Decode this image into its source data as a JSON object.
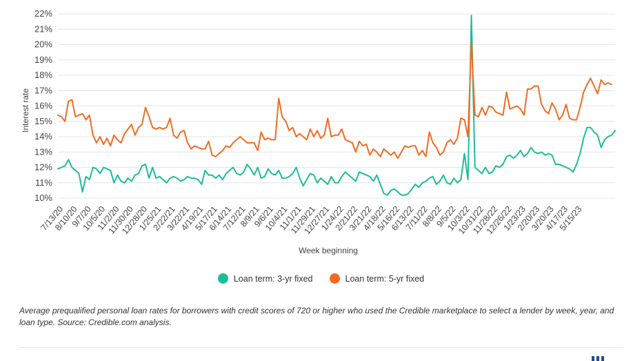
{
  "chart_data": {
    "type": "line",
    "ylabel": "Interest rate",
    "xlabel": "Week beginning",
    "ylim": [
      10,
      22
    ],
    "yticks": [
      "10%",
      "11%",
      "12%",
      "13%",
      "14%",
      "15%",
      "16%",
      "17%",
      "18%",
      "19%",
      "20%",
      "21%",
      "22%"
    ],
    "xticks": [
      "7/13/20",
      "8/10/20",
      "9/7/20",
      "10/5/20",
      "11/2/20",
      "11/30/20",
      "12/28/20",
      "1/25/21",
      "2/22/21",
      "3/22/21",
      "4/19/21",
      "5/17/21",
      "6/14/21",
      "7/12/21",
      "8/9/21",
      "9/6/21",
      "10/4/21",
      "11/1/21",
      "11/29/21",
      "12/27/21",
      "1/24/22",
      "2/21/22",
      "3/21/22",
      "4/18/22",
      "5/16/22",
      "6/13/22",
      "7/11/22",
      "8/8/22",
      "9/5/22",
      "10/3/22",
      "10/31/22",
      "11/28/22",
      "12/26/22",
      "1/23/23",
      "2/20/23",
      "3/20/23",
      "4/17/23",
      "5/15/23"
    ],
    "weeks_per_tick": 4,
    "series": [
      {
        "name": "Loan term: 3-yr fixed",
        "color": "#1bbc9b",
        "values": [
          11.9,
          12.0,
          12.1,
          12.5,
          12.0,
          11.8,
          11.6,
          10.4,
          11.4,
          11.2,
          12.0,
          11.9,
          11.6,
          12.0,
          11.9,
          11.8,
          11.0,
          11.5,
          11.1,
          11.0,
          11.3,
          11.1,
          11.5,
          11.6,
          12.1,
          12.2,
          11.3,
          12.0,
          11.3,
          11.4,
          11.2,
          11.0,
          11.3,
          11.4,
          11.3,
          11.1,
          11.2,
          11.4,
          11.3,
          11.3,
          11.2,
          10.9,
          11.8,
          11.5,
          11.5,
          11.3,
          11.5,
          11.2,
          11.6,
          11.8,
          12.0,
          11.6,
          11.5,
          11.7,
          12.2,
          11.9,
          11.5,
          12.0,
          11.3,
          11.4,
          11.9,
          11.6,
          11.5,
          11.8,
          11.3,
          11.3,
          11.4,
          11.6,
          12.0,
          11.3,
          10.8,
          11.2,
          11.6,
          11.5,
          11.0,
          11.3,
          11.1,
          10.9,
          11.4,
          11.0,
          11.0,
          11.4,
          11.7,
          11.5,
          11.3,
          11.1,
          11.7,
          11.6,
          11.5,
          11.4,
          11.1,
          11.5,
          10.9,
          10.3,
          10.2,
          10.5,
          10.6,
          10.4,
          10.2,
          10.2,
          10.3,
          10.6,
          10.9,
          10.7,
          11.0,
          11.1,
          11.3,
          11.4,
          10.9,
          11.1,
          11.5,
          11.0,
          10.9,
          11.3,
          11.0,
          11.2,
          12.9,
          11.2,
          21.9,
          12.0,
          11.8,
          11.6,
          12.0,
          11.6,
          11.7,
          12.1,
          12.0,
          12.2,
          12.7,
          12.8,
          12.6,
          12.8,
          13.1,
          12.7,
          12.9,
          13.3,
          13.0,
          12.9,
          13.0,
          12.8,
          12.9,
          12.8,
          12.2,
          12.2,
          12.1,
          12.0,
          11.9,
          11.7,
          12.2,
          12.9,
          13.9,
          14.6,
          14.6,
          14.3,
          14.1,
          13.3,
          13.8,
          14.0,
          14.1,
          14.4
        ]
      },
      {
        "name": "Loan term: 5-yr fixed",
        "color": "#f26b21",
        "values": [
          15.4,
          15.3,
          15.0,
          16.3,
          16.4,
          15.3,
          15.4,
          15.5,
          15.1,
          15.4,
          14.1,
          13.6,
          14.0,
          13.5,
          13.9,
          13.4,
          14.1,
          13.8,
          13.6,
          14.2,
          14.5,
          14.8,
          14.1,
          14.6,
          14.8,
          15.9,
          15.3,
          14.6,
          14.5,
          14.6,
          14.5,
          14.6,
          15.2,
          14.1,
          13.9,
          14.3,
          14.4,
          13.6,
          13.2,
          13.4,
          13.3,
          13.2,
          13.2,
          13.7,
          12.8,
          12.7,
          12.9,
          13.1,
          13.4,
          13.3,
          13.6,
          13.8,
          14.0,
          13.8,
          13.6,
          13.6,
          13.6,
          13.1,
          14.3,
          13.8,
          13.9,
          13.8,
          13.8,
          16.5,
          15.3,
          15.0,
          14.4,
          14.6,
          14.0,
          14.2,
          14.0,
          13.8,
          14.5,
          14.0,
          14.4,
          13.9,
          14.1,
          15.2,
          14.0,
          14.1,
          14.1,
          14.5,
          13.8,
          13.7,
          13.6,
          13.0,
          13.7,
          13.4,
          13.5,
          12.8,
          13.2,
          13.0,
          12.7,
          13.2,
          13.0,
          12.8,
          13.0,
          12.6,
          13.0,
          13.4,
          13.3,
          13.4,
          13.4,
          12.8,
          13.1,
          12.7,
          14.3,
          13.6,
          13.3,
          12.8,
          13.0,
          13.6,
          13.8,
          13.5,
          13.9,
          15.2,
          15.1,
          14.0,
          20.2,
          15.4,
          15.3,
          15.9,
          15.4,
          16.0,
          15.9,
          15.6,
          15.5,
          15.4,
          16.9,
          15.8,
          15.9,
          16.0,
          15.8,
          15.4,
          17.1,
          17.1,
          17.3,
          17.3,
          16.1,
          15.7,
          15.5,
          16.2,
          15.8,
          15.1,
          15.4,
          16.1,
          15.2,
          15.1,
          15.1,
          15.9,
          16.9,
          17.4,
          17.8,
          17.3,
          16.8,
          17.7,
          17.4,
          17.5,
          17.4
        ]
      }
    ]
  },
  "caption": "Average prequalified personal loan rates for borrowers with credit scores of 720 or higher who used the Credible marketplace to select a lender by week, year, and loan type. Source: Credible.com analysis."
}
